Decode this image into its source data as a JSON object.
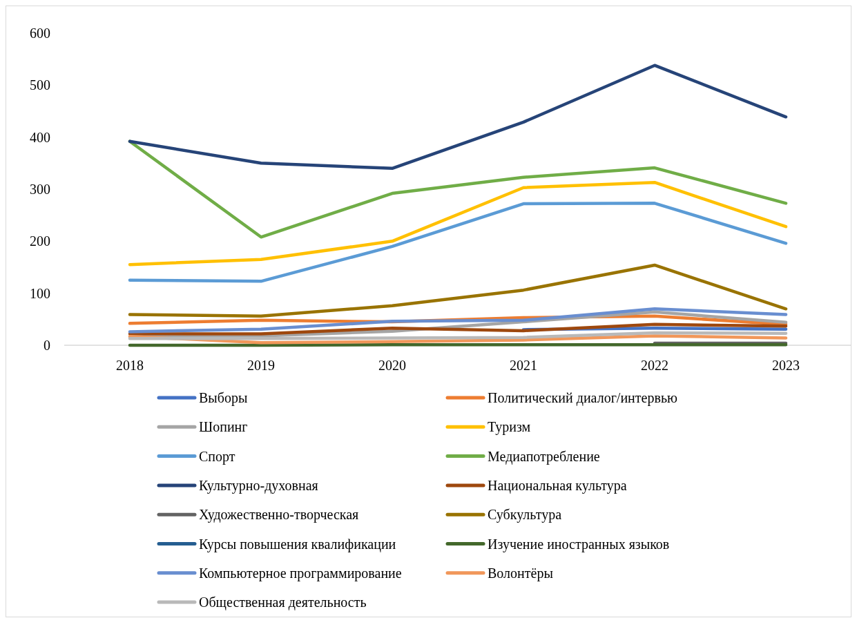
{
  "chart_data": {
    "type": "line",
    "categories": [
      "2018",
      "2019",
      "2020",
      "2021",
      "2022",
      "2023"
    ],
    "ylim": [
      0,
      600
    ],
    "yticks": [
      0,
      100,
      200,
      300,
      400,
      500,
      600
    ],
    "grid": false,
    "legend": "bottom",
    "marker": "none",
    "line_style": "solid",
    "series": [
      {
        "name": "Выборы",
        "color": "#4472c4",
        "values": [
          null,
          null,
          null,
          30,
          33,
          31
        ]
      },
      {
        "name": "Политический диалог/интервью",
        "color": "#ed7d31",
        "values": [
          42,
          48,
          45,
          53,
          56,
          40
        ]
      },
      {
        "name": "Шопинг",
        "color": "#a5a5a5",
        "values": [
          16,
          18,
          27,
          45,
          64,
          44
        ]
      },
      {
        "name": "Туризм",
        "color": "#ffc000",
        "values": [
          155,
          165,
          200,
          303,
          313,
          228
        ]
      },
      {
        "name": "Спорт",
        "color": "#5b9bd5",
        "values": [
          125,
          123,
          190,
          272,
          273,
          196
        ]
      },
      {
        "name": "Медиапотребление",
        "color": "#70ad47",
        "values": [
          392,
          208,
          292,
          323,
          341,
          273
        ]
      },
      {
        "name": "Культурно-духовная",
        "color": "#264478",
        "values": [
          392,
          350,
          340,
          429,
          538,
          439
        ]
      },
      {
        "name": "Национальная культура",
        "color": "#9e480e",
        "values": [
          22,
          22,
          33,
          28,
          40,
          37
        ]
      },
      {
        "name": "Художественно-творческая",
        "color": "#636363",
        "values": [
          null,
          null,
          null,
          null,
          4,
          4
        ]
      },
      {
        "name": "Субкультура",
        "color": "#997300",
        "values": [
          59,
          56,
          76,
          106,
          154,
          70
        ]
      },
      {
        "name": "Курсы повышения квалификации",
        "color": "#255e91",
        "values": [
          null,
          null,
          null,
          null,
          null,
          null
        ]
      },
      {
        "name": "Изучение иностранных языков",
        "color": "#43682b",
        "values": [
          0,
          0,
          1,
          1,
          1,
          1
        ]
      },
      {
        "name": "Компьютерное программирование",
        "color": "#698ed0",
        "values": [
          26,
          31,
          46,
          48,
          70,
          59
        ]
      },
      {
        "name": "Волонтёры",
        "color": "#f1975a",
        "values": [
          17,
          5,
          7,
          10,
          18,
          14
        ]
      },
      {
        "name": "Общественная деятельность",
        "color": "#b9b9b9",
        "values": [
          13,
          13,
          14,
          15,
          24,
          23
        ]
      }
    ]
  }
}
